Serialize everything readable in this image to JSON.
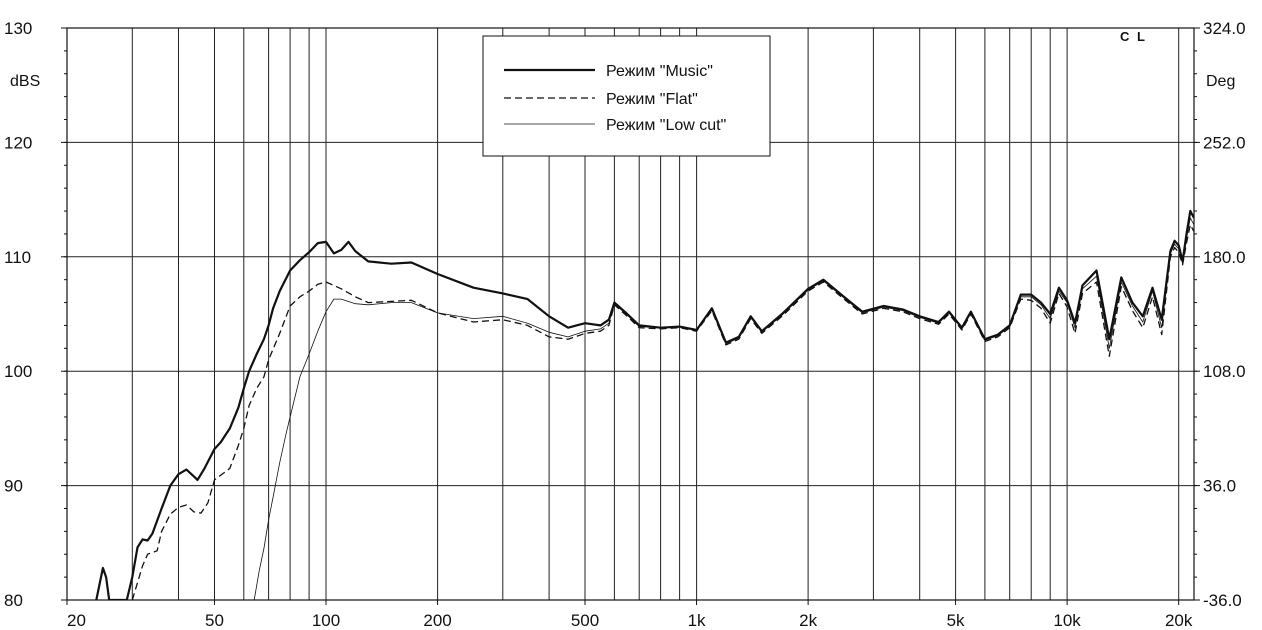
{
  "chart_data": {
    "type": "line",
    "corner_label": "C L",
    "x_scale": "log",
    "xlim": [
      20,
      22000
    ],
    "ylim": [
      80,
      130
    ],
    "ylabel": "dBS",
    "y2label": "Deg",
    "y2lim": [
      -36.0,
      324.0
    ],
    "grid": true,
    "legend_position": "top-center",
    "x_tick_values": [
      20,
      50,
      100,
      200,
      500,
      1000,
      2000,
      5000,
      10000,
      20000
    ],
    "x_tick_labels": [
      "20",
      "50",
      "100",
      "200",
      "500",
      "1k",
      "2k",
      "5k",
      "10k",
      "20k"
    ],
    "y_ticks": [
      80,
      90,
      100,
      110,
      120,
      130
    ],
    "y_tick_labels": [
      "80",
      "90",
      "100",
      "110",
      "120",
      "130"
    ],
    "y2_tick_labels": [
      "-36.0",
      "36.0",
      "108.0",
      "180.0",
      "252.0",
      "324.0"
    ],
    "gridlines_x": [
      30,
      40,
      50,
      60,
      70,
      80,
      90,
      100,
      200,
      300,
      400,
      500,
      600,
      700,
      800,
      900,
      1000,
      2000,
      3000,
      4000,
      5000,
      6000,
      7000,
      8000,
      9000,
      10000,
      20000
    ],
    "series": [
      {
        "name": "Режим \"Music\"",
        "style": "solid-thick",
        "color": "#111111",
        "points": [
          [
            24,
            80
          ],
          [
            25,
            82.8
          ],
          [
            25.5,
            82
          ],
          [
            26,
            80
          ],
          [
            29,
            80
          ],
          [
            30,
            82
          ],
          [
            31,
            84.6
          ],
          [
            32,
            85.3
          ],
          [
            33,
            85.2
          ],
          [
            34,
            85.8
          ],
          [
            36,
            88
          ],
          [
            38,
            90
          ],
          [
            40,
            91
          ],
          [
            42,
            91.4
          ],
          [
            44,
            90.8
          ],
          [
            45,
            90.5
          ],
          [
            47,
            91.5
          ],
          [
            50,
            93.2
          ],
          [
            52,
            93.8
          ],
          [
            55,
            95
          ],
          [
            58,
            96.8
          ],
          [
            60,
            98.5
          ],
          [
            62,
            100
          ],
          [
            65,
            101.5
          ],
          [
            68,
            102.8
          ],
          [
            70,
            104
          ],
          [
            72,
            105.5
          ],
          [
            75,
            107
          ],
          [
            80,
            108.8
          ],
          [
            85,
            109.7
          ],
          [
            90,
            110.4
          ],
          [
            95,
            111.2
          ],
          [
            100,
            111.3
          ],
          [
            105,
            110.3
          ],
          [
            110,
            110.6
          ],
          [
            115,
            111.3
          ],
          [
            120,
            110.5
          ],
          [
            130,
            109.6
          ],
          [
            150,
            109.4
          ],
          [
            170,
            109.5
          ],
          [
            200,
            108.5
          ],
          [
            250,
            107.3
          ],
          [
            300,
            106.8
          ],
          [
            350,
            106.3
          ],
          [
            400,
            104.8
          ],
          [
            450,
            103.8
          ],
          [
            500,
            104.2
          ],
          [
            550,
            104
          ],
          [
            580,
            104.5
          ],
          [
            600,
            106
          ],
          [
            650,
            105
          ],
          [
            700,
            104
          ],
          [
            800,
            103.8
          ],
          [
            900,
            103.9
          ],
          [
            1000,
            103.6
          ],
          [
            1100,
            105.5
          ],
          [
            1200,
            102.5
          ],
          [
            1300,
            103
          ],
          [
            1400,
            104.8
          ],
          [
            1500,
            103.5
          ],
          [
            1700,
            105
          ],
          [
            2000,
            107.2
          ],
          [
            2200,
            108
          ],
          [
            2500,
            106.5
          ],
          [
            2800,
            105.2
          ],
          [
            3200,
            105.7
          ],
          [
            3600,
            105.4
          ],
          [
            4000,
            104.8
          ],
          [
            4500,
            104.3
          ],
          [
            4800,
            105.2
          ],
          [
            5200,
            103.8
          ],
          [
            5500,
            105.2
          ],
          [
            6000,
            102.8
          ],
          [
            6500,
            103.2
          ],
          [
            7000,
            104
          ],
          [
            7500,
            106.7
          ],
          [
            8000,
            106.7
          ],
          [
            8500,
            106
          ],
          [
            9000,
            105
          ],
          [
            9500,
            107.3
          ],
          [
            10000,
            106.2
          ],
          [
            10500,
            104.2
          ],
          [
            11000,
            107.5
          ],
          [
            12000,
            108.8
          ],
          [
            13000,
            102.8
          ],
          [
            14000,
            108.2
          ],
          [
            15000,
            106
          ],
          [
            16000,
            104.8
          ],
          [
            17000,
            107.3
          ],
          [
            18000,
            104.5
          ],
          [
            19000,
            110.5
          ],
          [
            19500,
            111.4
          ],
          [
            20000,
            111
          ],
          [
            20500,
            109.6
          ],
          [
            21000,
            112
          ],
          [
            21500,
            114
          ],
          [
            22000,
            113.4
          ]
        ]
      },
      {
        "name": "Режим \"Flat\"",
        "style": "dashed",
        "color": "#111111",
        "points": [
          [
            30,
            80
          ],
          [
            32,
            83
          ],
          [
            33,
            84
          ],
          [
            35,
            84.3
          ],
          [
            36,
            86
          ],
          [
            38,
            87.5
          ],
          [
            40,
            88.1
          ],
          [
            42,
            88.3
          ],
          [
            44,
            87.7
          ],
          [
            46,
            87.6
          ],
          [
            48,
            88.5
          ],
          [
            50,
            90.5
          ],
          [
            55,
            91.5
          ],
          [
            58,
            93.5
          ],
          [
            60,
            95
          ],
          [
            62,
            97
          ],
          [
            65,
            98.5
          ],
          [
            68,
            99.5
          ],
          [
            70,
            101
          ],
          [
            75,
            103.3
          ],
          [
            80,
            105.7
          ],
          [
            85,
            106.5
          ],
          [
            90,
            107
          ],
          [
            95,
            107.6
          ],
          [
            100,
            107.8
          ],
          [
            110,
            107.2
          ],
          [
            120,
            106.5
          ],
          [
            130,
            106
          ],
          [
            150,
            106.1
          ],
          [
            170,
            106.2
          ],
          [
            200,
            105.1
          ],
          [
            250,
            104.3
          ],
          [
            300,
            104.5
          ],
          [
            350,
            104
          ],
          [
            400,
            103
          ],
          [
            450,
            102.8
          ],
          [
            500,
            103.3
          ],
          [
            550,
            103.5
          ],
          [
            580,
            104
          ],
          [
            600,
            105.8
          ],
          [
            650,
            104.8
          ],
          [
            700,
            103.8
          ],
          [
            800,
            103.7
          ],
          [
            900,
            103.8
          ],
          [
            1000,
            103.5
          ],
          [
            1100,
            105.3
          ],
          [
            1200,
            102.3
          ],
          [
            1300,
            102.8
          ],
          [
            1400,
            104.6
          ],
          [
            1500,
            103.3
          ],
          [
            1700,
            104.8
          ],
          [
            2000,
            107
          ],
          [
            2200,
            107.8
          ],
          [
            2500,
            106.3
          ],
          [
            2800,
            105
          ],
          [
            3200,
            105.5
          ],
          [
            3600,
            105.2
          ],
          [
            4000,
            104.6
          ],
          [
            4500,
            104.1
          ],
          [
            4800,
            105
          ],
          [
            5200,
            103.6
          ],
          [
            5500,
            105
          ],
          [
            6000,
            102.6
          ],
          [
            6500,
            103
          ],
          [
            7000,
            103.8
          ],
          [
            7500,
            106.3
          ],
          [
            8000,
            106.2
          ],
          [
            8500,
            105.5
          ],
          [
            9000,
            104.2
          ],
          [
            9500,
            106.8
          ],
          [
            10000,
            105.6
          ],
          [
            10500,
            103.3
          ],
          [
            11000,
            106.8
          ],
          [
            12000,
            107.8
          ],
          [
            13000,
            101.3
          ],
          [
            14000,
            107.4
          ],
          [
            15000,
            105.3
          ],
          [
            16000,
            103.8
          ],
          [
            17000,
            106.5
          ],
          [
            18000,
            103.2
          ],
          [
            19000,
            110
          ],
          [
            19500,
            110.8
          ],
          [
            20000,
            110.4
          ],
          [
            20500,
            109.3
          ],
          [
            21000,
            111.2
          ],
          [
            21500,
            112.8
          ],
          [
            22000,
            112.2
          ]
        ]
      },
      {
        "name": "Режим \"Low cut\"",
        "style": "thin",
        "color": "#111111",
        "points": [
          [
            64,
            80
          ],
          [
            66,
            82.5
          ],
          [
            68,
            84.5
          ],
          [
            70,
            87
          ],
          [
            72,
            89
          ],
          [
            75,
            92
          ],
          [
            78,
            94.5
          ],
          [
            80,
            96
          ],
          [
            85,
            99.5
          ],
          [
            90,
            101.5
          ],
          [
            95,
            103.5
          ],
          [
            100,
            105.2
          ],
          [
            105,
            106.3
          ],
          [
            110,
            106.3
          ],
          [
            120,
            105.9
          ],
          [
            130,
            105.8
          ],
          [
            150,
            106
          ],
          [
            170,
            106
          ],
          [
            200,
            105.1
          ],
          [
            250,
            104.6
          ],
          [
            300,
            104.8
          ],
          [
            350,
            104.2
          ],
          [
            400,
            103.4
          ],
          [
            450,
            103
          ],
          [
            500,
            103.5
          ],
          [
            550,
            103.7
          ],
          [
            580,
            104.2
          ],
          [
            600,
            105.9
          ],
          [
            650,
            104.9
          ],
          [
            700,
            103.9
          ],
          [
            800,
            103.8
          ],
          [
            900,
            103.9
          ],
          [
            1000,
            103.6
          ],
          [
            1100,
            105.4
          ],
          [
            1200,
            102.4
          ],
          [
            1300,
            102.9
          ],
          [
            1400,
            104.7
          ],
          [
            1500,
            103.4
          ],
          [
            1700,
            104.9
          ],
          [
            2000,
            107.1
          ],
          [
            2200,
            107.9
          ],
          [
            2500,
            106.4
          ],
          [
            2800,
            105.1
          ],
          [
            3200,
            105.6
          ],
          [
            3600,
            105.3
          ],
          [
            4000,
            104.7
          ],
          [
            4500,
            104.2
          ],
          [
            4800,
            105.1
          ],
          [
            5200,
            103.7
          ],
          [
            5500,
            105.1
          ],
          [
            6000,
            102.7
          ],
          [
            6500,
            103.1
          ],
          [
            7000,
            103.9
          ],
          [
            7500,
            106.5
          ],
          [
            8000,
            106.5
          ],
          [
            8500,
            105.8
          ],
          [
            9000,
            104.6
          ],
          [
            9500,
            107
          ],
          [
            10000,
            106
          ],
          [
            10500,
            103.8
          ],
          [
            11000,
            107.2
          ],
          [
            12000,
            108.3
          ],
          [
            13000,
            102
          ],
          [
            14000,
            107.8
          ],
          [
            15000,
            105.7
          ],
          [
            16000,
            104.3
          ],
          [
            17000,
            107
          ],
          [
            18000,
            103.8
          ],
          [
            19000,
            110.3
          ],
          [
            19500,
            111.1
          ],
          [
            20000,
            110.7
          ],
          [
            20500,
            109.4
          ],
          [
            21000,
            111.6
          ],
          [
            21500,
            113.4
          ],
          [
            22000,
            112.8
          ]
        ]
      }
    ]
  }
}
